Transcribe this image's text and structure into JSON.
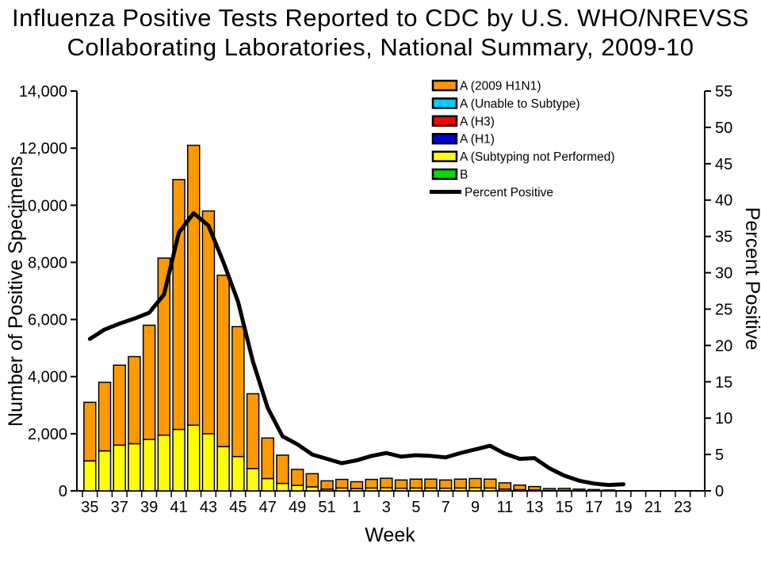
{
  "title": {
    "line1": "Influenza Positive Tests Reported to CDC by U.S. WHO/NREVSS",
    "line2": "Collaborating Laboratories, National Summary, 2009-10"
  },
  "axes": {
    "left": {
      "label": "Number of Positive Specimens",
      "tick_labels": [
        "0",
        "2,000",
        "4,000",
        "6,000",
        "8,000",
        "10,000",
        "12,000",
        "14,000"
      ],
      "range": [
        0,
        14000
      ]
    },
    "right": {
      "label": "Percent Positive",
      "tick_labels": [
        "0",
        "5",
        "10",
        "15",
        "20",
        "25",
        "30",
        "35",
        "40",
        "45",
        "50",
        "55"
      ],
      "range": [
        0,
        55
      ]
    },
    "x": {
      "label": "Week",
      "tick_labels": [
        "35",
        "37",
        "39",
        "41",
        "43",
        "45",
        "47",
        "49",
        "51",
        "1",
        "3",
        "5",
        "7",
        "9",
        "11",
        "13",
        "15",
        "17",
        "19",
        "21",
        "23"
      ]
    }
  },
  "legend": [
    {
      "label": "A (2009 H1N1)",
      "color": "#FF9900",
      "swatch": "box"
    },
    {
      "label": "A (Unable to Subtype)",
      "color": "#00CCFF",
      "swatch": "box"
    },
    {
      "label": "A (H3)",
      "color": "#FF0000",
      "swatch": "box"
    },
    {
      "label": "A (H1)",
      "color": "#0000DD",
      "swatch": "box"
    },
    {
      "label": "A (Subtyping not Performed)",
      "color": "#FFFF00",
      "swatch": "box"
    },
    {
      "label": "B",
      "color": "#00DD00",
      "swatch": "box"
    },
    {
      "label": "Percent Positive",
      "color": "#000000",
      "swatch": "line"
    }
  ],
  "chart_data": {
    "type": "stacked-bar+line",
    "categories": [
      "35",
      "36",
      "37",
      "38",
      "39",
      "40",
      "41",
      "42",
      "43",
      "44",
      "45",
      "46",
      "47",
      "48",
      "49",
      "50",
      "51",
      "52",
      "1",
      "2",
      "3",
      "4",
      "5",
      "6",
      "7",
      "8",
      "9",
      "10",
      "11",
      "12",
      "13",
      "14",
      "15",
      "16",
      "17",
      "18",
      "19",
      "20",
      "21",
      "22",
      "23",
      "24"
    ],
    "stack_order_bottom_to_top": [
      "A (Subtyping not Performed)",
      "A (2009 H1N1)"
    ],
    "series": [
      {
        "name": "A (2009 H1N1)",
        "color": "#FF9900",
        "values": [
          2050,
          2400,
          2800,
          3050,
          4000,
          6200,
          8750,
          9800,
          7800,
          6000,
          4550,
          2620,
          1420,
          990,
          560,
          460,
          290,
          300,
          240,
          300,
          330,
          290,
          310,
          310,
          290,
          310,
          320,
          310,
          220,
          160,
          120,
          65,
          70,
          50,
          35,
          25,
          0,
          0,
          0,
          0,
          0,
          0
        ]
      },
      {
        "name": "A (Unable to Subtype)",
        "color": "#00CCFF",
        "values": [
          0,
          0,
          0,
          0,
          0,
          0,
          0,
          0,
          0,
          0,
          0,
          0,
          0,
          0,
          0,
          0,
          0,
          0,
          0,
          0,
          0,
          0,
          0,
          0,
          0,
          0,
          0,
          0,
          0,
          0,
          0,
          0,
          0,
          0,
          0,
          0,
          0,
          0,
          0,
          0,
          0,
          0
        ]
      },
      {
        "name": "A (H3)",
        "color": "#FF0000",
        "values": [
          0,
          0,
          0,
          0,
          0,
          0,
          0,
          0,
          0,
          0,
          0,
          0,
          0,
          0,
          0,
          0,
          0,
          0,
          0,
          0,
          0,
          0,
          0,
          0,
          0,
          0,
          0,
          0,
          0,
          0,
          0,
          0,
          0,
          0,
          0,
          0,
          0,
          0,
          0,
          0,
          0,
          0
        ]
      },
      {
        "name": "A (H1)",
        "color": "#0000DD",
        "values": [
          0,
          0,
          0,
          0,
          0,
          0,
          0,
          0,
          0,
          0,
          0,
          0,
          0,
          0,
          0,
          0,
          0,
          0,
          0,
          0,
          0,
          0,
          0,
          0,
          0,
          0,
          0,
          0,
          0,
          0,
          0,
          0,
          0,
          0,
          0,
          0,
          0,
          0,
          0,
          0,
          0,
          0
        ]
      },
      {
        "name": "A (Subtyping not Performed)",
        "color": "#FFFF00",
        "values": [
          1050,
          1400,
          1600,
          1650,
          1800,
          1950,
          2150,
          2300,
          2000,
          1550,
          1200,
          780,
          430,
          260,
          190,
          140,
          60,
          100,
          80,
          100,
          110,
          90,
          100,
          100,
          90,
          100,
          110,
          100,
          60,
          40,
          30,
          15,
          15,
          10,
          10,
          5,
          0,
          0,
          0,
          0,
          0,
          0
        ]
      },
      {
        "name": "B",
        "color": "#00DD00",
        "values": [
          0,
          0,
          0,
          0,
          0,
          0,
          0,
          0,
          0,
          0,
          0,
          0,
          0,
          0,
          0,
          0,
          0,
          0,
          0,
          0,
          0,
          0,
          0,
          0,
          0,
          0,
          0,
          0,
          0,
          0,
          0,
          0,
          0,
          0,
          0,
          0,
          0,
          0,
          0,
          0,
          0,
          0
        ]
      }
    ],
    "line_series": {
      "name": "Percent Positive",
      "color": "#000000",
      "axis": "right",
      "values": [
        20.9,
        22.2,
        23,
        23.7,
        24.5,
        27,
        35.5,
        38.2,
        36.5,
        31.5,
        26,
        17.8,
        11.4,
        7.5,
        6.4,
        5,
        4.4,
        3.8,
        4.2,
        4.8,
        5.2,
        4.7,
        4.9,
        4.8,
        4.6,
        5.2,
        5.7,
        6.2,
        5.1,
        4.4,
        4.5,
        3.1,
        2.1,
        1.4,
        1,
        0.8,
        0.9,
        null,
        null,
        null,
        null,
        null
      ]
    },
    "ylim_left": [
      0,
      14000
    ],
    "ylim_right": [
      0,
      55
    ],
    "grid": false,
    "legend_position": "top-center-inside"
  }
}
